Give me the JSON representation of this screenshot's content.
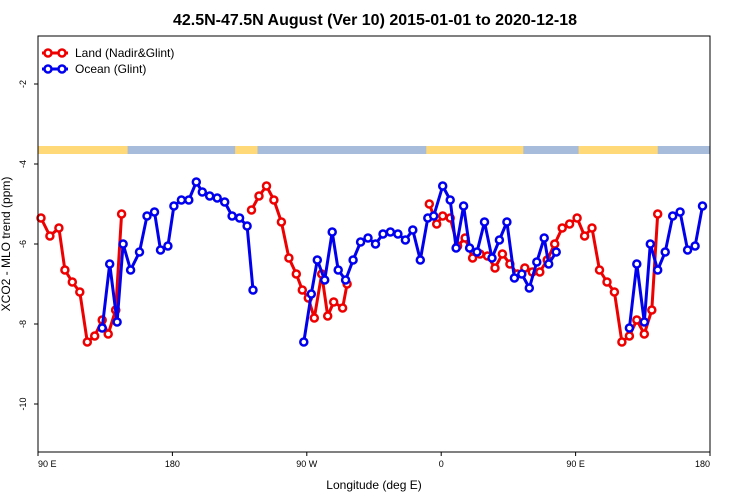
{
  "chart_data": {
    "type": "line",
    "title": "42.5N-47.5N August (Ver 10)   2015-01-01 to 2020-12-18",
    "xlabel": "Longitude (deg E)",
    "ylabel": "XCO2 - MLO trend (ppm)",
    "x_ticks": [
      {
        "value": 90,
        "label": "90 E"
      },
      {
        "value": 180,
        "label": "180"
      },
      {
        "value": 270,
        "label": "90 W"
      },
      {
        "value": 360,
        "label": "0"
      },
      {
        "value": 450,
        "label": "90 E"
      },
      {
        "value": 540,
        "label": "180"
      }
    ],
    "y_ticks": [
      {
        "value": -2,
        "label": "-2"
      },
      {
        "value": -4,
        "label": "-4"
      },
      {
        "value": -6,
        "label": "-6"
      },
      {
        "value": -8,
        "label": "-8"
      },
      {
        "value": -10,
        "label": "-10"
      }
    ],
    "xlim": [
      90,
      540
    ],
    "ylim": [
      -11.2,
      -0.8
    ],
    "legend_position": "top-left",
    "land_ocean_strip": {
      "y_range": [
        -3.75,
        -3.55
      ],
      "land_color": "#ffd878",
      "ocean_color": "#a7bcdb"
    },
    "series": [
      {
        "name": "Land (Nadir&Glint)",
        "color": "#ee0000",
        "segments": [
          [
            [
              92,
              -5.35
            ],
            [
              98,
              -5.8
            ],
            [
              104,
              -5.6
            ],
            [
              108,
              -6.65
            ],
            [
              113,
              -6.95
            ],
            [
              118,
              -7.2
            ],
            [
              123,
              -8.45
            ],
            [
              128,
              -8.3
            ],
            [
              133,
              -7.9
            ],
            [
              137,
              -8.25
            ],
            [
              142,
              -7.65
            ],
            [
              146,
              -5.25
            ],
            [
              142,
              -7.65
            ]
          ],
          [
            [
              233,
              -5.15
            ],
            [
              238,
              -4.8
            ],
            [
              243,
              -4.55
            ],
            [
              248,
              -4.9
            ],
            [
              253,
              -5.45
            ],
            [
              258,
              -6.35
            ],
            [
              263,
              -6.75
            ],
            [
              267,
              -7.15
            ],
            [
              271,
              -7.35
            ],
            [
              275,
              -7.85
            ],
            [
              280,
              -6.75
            ],
            [
              284,
              -7.8
            ],
            [
              288,
              -7.45
            ],
            [
              294,
              -7.6
            ],
            [
              297,
              -7.0
            ]
          ],
          [
            [
              352,
              -5.0
            ],
            [
              357,
              -5.5
            ],
            [
              361,
              -5.3
            ],
            [
              366,
              -5.35
            ],
            [
              371,
              -6.05
            ],
            [
              376,
              -5.85
            ],
            [
              381,
              -6.35
            ],
            [
              386,
              -6.25
            ],
            [
              391,
              -6.3
            ],
            [
              396,
              -6.6
            ],
            [
              401,
              -6.25
            ],
            [
              406,
              -6.5
            ],
            [
              411,
              -6.75
            ],
            [
              416,
              -6.6
            ],
            [
              421,
              -6.7
            ],
            [
              426,
              -6.7
            ],
            [
              431,
              -6.4
            ],
            [
              436,
              -6.0
            ],
            [
              441,
              -5.6
            ],
            [
              446,
              -5.5
            ],
            [
              451,
              -5.35
            ],
            [
              456,
              -5.8
            ],
            [
              461,
              -5.6
            ],
            [
              466,
              -6.65
            ],
            [
              471,
              -6.95
            ],
            [
              476,
              -7.2
            ],
            [
              481,
              -8.45
            ],
            [
              486,
              -8.3
            ],
            [
              491,
              -7.9
            ],
            [
              496,
              -8.25
            ],
            [
              501,
              -7.65
            ],
            [
              505,
              -5.25
            ]
          ]
        ]
      },
      {
        "name": "Ocean (Glint)",
        "color": "#0000ee",
        "segments": [
          [
            [
              133,
              -8.1
            ],
            [
              138,
              -6.5
            ],
            [
              143,
              -7.95
            ],
            [
              147,
              -6.0
            ],
            [
              152,
              -6.65
            ],
            [
              158,
              -6.2
            ],
            [
              163,
              -5.3
            ],
            [
              168,
              -5.2
            ],
            [
              172,
              -6.15
            ],
            [
              177,
              -6.05
            ],
            [
              181,
              -5.05
            ],
            [
              186,
              -4.9
            ],
            [
              191,
              -4.9
            ],
            [
              196,
              -4.45
            ],
            [
              200,
              -4.7
            ],
            [
              205,
              -4.8
            ],
            [
              210,
              -4.85
            ],
            [
              215,
              -4.95
            ],
            [
              220,
              -5.3
            ],
            [
              225,
              -5.35
            ],
            [
              230,
              -5.55
            ],
            [
              234,
              -7.15
            ]
          ],
          [
            [
              268,
              -8.45
            ],
            [
              273,
              -7.25
            ],
            [
              277,
              -6.4
            ],
            [
              282,
              -6.9
            ],
            [
              287,
              -5.7
            ],
            [
              291,
              -6.65
            ],
            [
              296,
              -6.9
            ],
            [
              301,
              -6.4
            ],
            [
              306,
              -5.95
            ],
            [
              311,
              -5.85
            ],
            [
              316,
              -6.0
            ],
            [
              321,
              -5.75
            ],
            [
              326,
              -5.7
            ],
            [
              331,
              -5.75
            ],
            [
              336,
              -5.9
            ],
            [
              341,
              -5.65
            ],
            [
              346,
              -6.4
            ],
            [
              351,
              -5.35
            ],
            [
              355,
              -5.3
            ],
            [
              361,
              -4.55
            ],
            [
              366,
              -4.9
            ],
            [
              370,
              -6.1
            ],
            [
              375,
              -5.05
            ],
            [
              379,
              -6.1
            ],
            [
              384,
              -6.2
            ],
            [
              389,
              -5.45
            ],
            [
              394,
              -6.35
            ],
            [
              399,
              -5.9
            ],
            [
              404,
              -5.45
            ],
            [
              409,
              -6.85
            ],
            [
              414,
              -6.75
            ],
            [
              419,
              -7.1
            ],
            [
              424,
              -6.45
            ],
            [
              429,
              -5.85
            ],
            [
              432,
              -6.5
            ],
            [
              437,
              -6.2
            ]
          ],
          [
            [
              486,
              -8.1
            ],
            [
              491,
              -6.5
            ],
            [
              496,
              -7.95
            ],
            [
              500,
              -6.0
            ],
            [
              505,
              -6.65
            ],
            [
              510,
              -6.2
            ],
            [
              515,
              -5.3
            ],
            [
              520,
              -5.2
            ],
            [
              525,
              -6.15
            ],
            [
              530,
              -6.05
            ],
            [
              535,
              -5.05
            ]
          ]
        ]
      }
    ]
  }
}
